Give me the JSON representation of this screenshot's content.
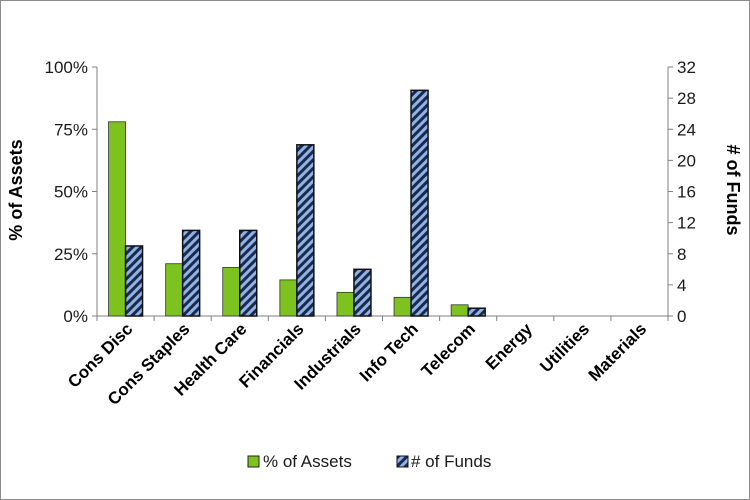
{
  "chart_data": {
    "type": "bar",
    "categories": [
      "Cons Disc",
      "Cons Staples",
      "Health Care",
      "Financials",
      "Industrials",
      "Info Tech",
      "Telecom",
      "Energy",
      "Utilities",
      "Materials"
    ],
    "series": [
      {
        "name": "% of Assets",
        "axis": "left",
        "color": "#7dc21e",
        "values": [
          78,
          21,
          19.5,
          14.5,
          9.5,
          7.5,
          4.5,
          0,
          0,
          0
        ]
      },
      {
        "name": "# of Funds",
        "axis": "right",
        "color": "#8fb3e6",
        "pattern": "diagonal-stripes",
        "values": [
          9,
          11,
          11,
          22,
          6,
          29,
          1,
          0,
          0,
          0
        ]
      }
    ],
    "ylabel_left": "% of Assets",
    "ylabel_right": "# of Funds",
    "ylim_left": [
      0,
      100
    ],
    "ylim_right": [
      0,
      32
    ],
    "yticks_left": [
      "0%",
      "25%",
      "50%",
      "75%",
      "100%"
    ],
    "yticks_right": [
      "0",
      "4",
      "8",
      "12",
      "16",
      "20",
      "24",
      "28",
      "32"
    ],
    "legend": [
      "% of Assets",
      "# of Funds"
    ],
    "legend_position": "bottom",
    "grid": false
  }
}
